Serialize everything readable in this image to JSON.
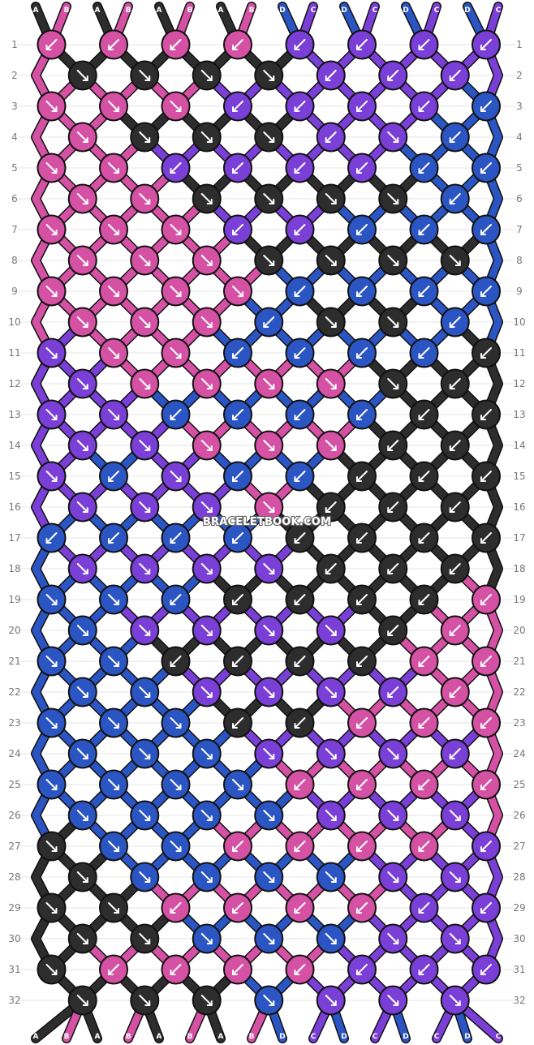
{
  "watermark": "BRACELETBOOK.COM",
  "row_numbers": [
    "1",
    "2",
    "3",
    "4",
    "5",
    "6",
    "7",
    "8",
    "9",
    "10",
    "11",
    "12",
    "13",
    "14",
    "15",
    "16",
    "17",
    "18",
    "19",
    "20",
    "21",
    "22",
    "23",
    "24",
    "25",
    "26",
    "27",
    "28",
    "29",
    "30",
    "31",
    "32"
  ],
  "strand_labels_top": [
    "A",
    "B",
    "A",
    "B",
    "A",
    "B",
    "A",
    "B",
    "D",
    "C",
    "D",
    "C",
    "D",
    "C",
    "D",
    "C"
  ],
  "strand_labels_bottom": [
    "A",
    "B",
    "A",
    "B",
    "A",
    "B",
    "A",
    "B",
    "D",
    "C",
    "D",
    "C",
    "D",
    "C",
    "D",
    "C"
  ],
  "colors": {
    "A": "#2d2d2d",
    "B": "#d451a4",
    "C": "#7a3fd6",
    "D": "#2b55c2",
    "outline": "#111111",
    "arrow": "#ffffff",
    "rownum": "#777777",
    "grid": "#dddddd"
  },
  "knot_rows": [
    "B,B,B,B,C,C,C,C",
    "A,A,A,A,C,C,C",
    "B,B,B,C,C,C,C,D",
    "B,A,A,A,C,C,D",
    "B,B,C,C,C,C,D,D",
    "B,B,A,A,A,A,D",
    "B,B,B,C,C,D,D,D",
    "B,B,B,A,A,A,A",
    "B,B,B,B,D,D,D,D",
    "B,B,B,D,A,A,D",
    "C,B,B,D,D,D,D,A",
    "C,B,B,B,B,A,A",
    "C,C,D,D,D,D,A,A",
    "C,C,B,B,B,A,A",
    "C,D,C,D,D,A,A,A",
    "C,C,C,B,A,A,A",
    "D,D,D,D,A,A,A,A",
    "C,C,C,C,A,A,A",
    "D,D,D,A,A,A,A,B",
    "D,C,C,C,C,A,B",
    "D,D,A,A,A,A,B,B",
    "D,D,C,C,C,C,B",
    "D,D,D,A,A,B,B,B",
    "D,D,D,C,C,C,C",
    "D,D,D,D,B,B,B,B",
    "D,D,D,D,C,C,C",
    "A,D,D,B,B,B,B,C",
    "A,D,D,D,D,C,C",
    "A,A,B,B,B,B,C,C",
    "A,A,D,D,D,C,C",
    "A,B,B,B,B,C,C,C",
    "A,A,A,D,C,C,C"
  ],
  "arrow_rows": [
    "BL,BL,BL,BL,BL,BL,BL,BL",
    "BR,BR,BR,BR,BL,BL,BL",
    "BR,BR,BR,BL,BL,BL,BL,BL",
    "BR,BR,BR,BR,BL,BR,BL",
    "BR,BR,BL,BL,BL,BL,BL,BL",
    "BR,BR,BR,BR,BR,BR,BL",
    "BR,BR,BR,BL,BL,BL,BL,BL",
    "BR,BR,BR,BR,BR,BR,BR",
    "BR,BR,BR,BR,BL,BL,BL,BL",
    "BR,BR,BR,BL,BR,BR,BL",
    "BR,BR,BR,BL,BL,BL,BL,BL",
    "BR,BR,BR,BR,BR,BR,BL",
    "BR,BR,BL,BL,BL,BL,BL,BL",
    "BR,BR,BR,BR,BR,BL,BL",
    "BR,BL,BR,BL,BL,BL,BL,BL",
    "BR,BR,BR,BR,BL,BL,BL",
    "BL,BL,BL,BL,BL,BL,BL,BL",
    "BR,BR,BR,BR,BL,BL,BL",
    "BR,BR,BL,BL,BL,BL,BL,BL",
    "BR,BR,BR,BR,BR,BL,BL",
    "BR,BR,BL,BL,BL,BL,BL,BL",
    "BR,BR,BR,BR,BR,BL,BL",
    "BR,BR,BR,BL,BL,BL,BL,BL",
    "BR,BR,BR,BR,BR,BR,BL",
    "BR,BR,BR,BR,BL,BL,BL,BL",
    "BR,BR,BR,BR,BR,BR,BR",
    "BR,BR,BR,BL,BL,BL,BL,BL",
    "BR,BR,BR,BR,BR,BR,BR",
    "BR,BR,BL,BL,BL,BL,BL,BL",
    "BR,BR,BR,BR,BR,BR,BR",
    "BR,BL,BL,BL,BL,BL,BL,BL",
    "BR,BR,BR,BR,BR,BR,BR"
  ]
}
